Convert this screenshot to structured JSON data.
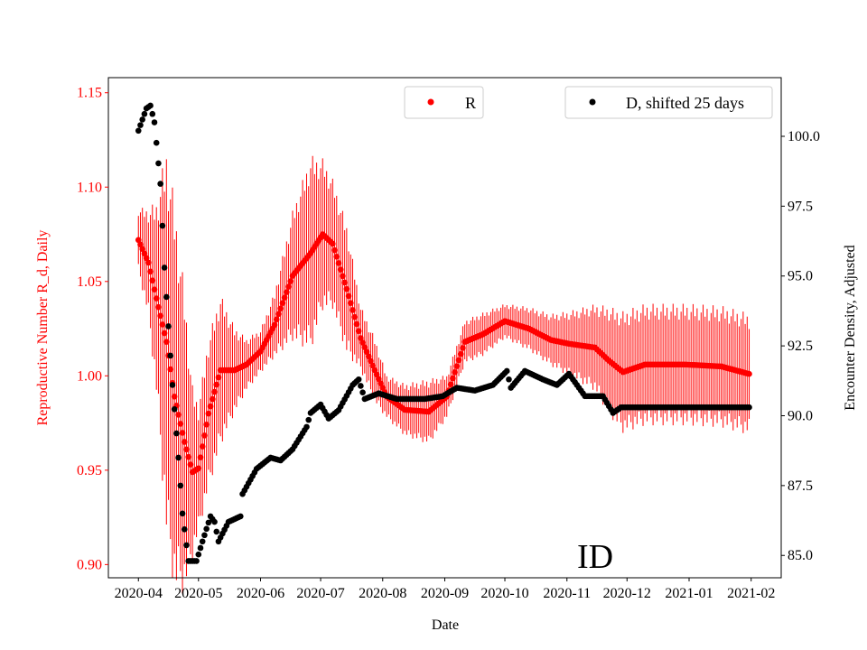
{
  "chart_data": {
    "type": "scatter",
    "xlabel": "Date",
    "ylabel_left": "Reproductive Number R_d, Daily",
    "ylabel_right": "Encounter Density, Adjusted",
    "annotation": "ID",
    "xlim": [
      "2020-03-17",
      "2021-02-16"
    ],
    "ylim_left": [
      0.893,
      1.158
    ],
    "ylim_right": [
      84.2,
      102.1
    ],
    "x_ticks": [
      "2020-04",
      "2020-05",
      "2020-06",
      "2020-07",
      "2020-08",
      "2020-09",
      "2020-10",
      "2020-11",
      "2020-12",
      "2021-01",
      "2021-02"
    ],
    "y_ticks_left": [
      "0.90",
      "0.95",
      "1.00",
      "1.05",
      "1.10",
      "1.15"
    ],
    "y_ticks_right": [
      "85.0",
      "87.5",
      "90.0",
      "92.5",
      "95.0",
      "97.5",
      "100.0"
    ],
    "legend": [
      {
        "label": "R",
        "color": "#ff0000",
        "position": "top-center"
      },
      {
        "label": "D, shifted 25 days",
        "color": "#000000",
        "position": "top-right"
      }
    ],
    "grid": false,
    "series": [
      {
        "name": "R",
        "axis": "left",
        "color": "#ff0000",
        "error_bars": true,
        "points": [
          [
            "2020-04-01",
            1.072,
            0.015
          ],
          [
            "2020-04-06",
            1.06,
            0.025
          ],
          [
            "2020-04-10",
            1.041,
            0.045
          ],
          [
            "2020-04-15",
            1.018,
            0.09
          ],
          [
            "2020-04-19",
            0.989,
            0.09
          ],
          [
            "2020-04-24",
            0.965,
            0.07
          ],
          [
            "2020-04-28",
            0.949,
            0.04
          ],
          [
            "2020-05-01",
            0.951,
            0.03
          ],
          [
            "2020-05-06",
            0.98,
            0.035
          ],
          [
            "2020-05-12",
            1.003,
            0.035
          ],
          [
            "2020-05-19",
            1.003,
            0.02
          ],
          [
            "2020-05-25",
            1.006,
            0.012
          ],
          [
            "2020-06-01",
            1.013,
            0.01
          ],
          [
            "2020-06-08",
            1.027,
            0.015
          ],
          [
            "2020-06-17",
            1.053,
            0.03
          ],
          [
            "2020-06-26",
            1.065,
            0.045
          ],
          [
            "2020-07-02",
            1.075,
            0.035
          ],
          [
            "2020-07-07",
            1.07,
            0.03
          ],
          [
            "2020-07-14",
            1.046,
            0.03
          ],
          [
            "2020-07-21",
            1.02,
            0.015
          ],
          [
            "2020-07-28",
            1.003,
            0.015
          ],
          [
            "2020-08-03",
            0.989,
            0.01
          ],
          [
            "2020-08-12",
            0.982,
            0.012
          ],
          [
            "2020-08-24",
            0.981,
            0.015
          ],
          [
            "2020-09-02",
            0.989,
            0.01
          ],
          [
            "2020-09-11",
            1.018,
            0.01
          ],
          [
            "2020-09-20",
            1.022,
            0.01
          ],
          [
            "2020-10-01",
            1.029,
            0.008
          ],
          [
            "2020-10-13",
            1.025,
            0.01
          ],
          [
            "2020-10-24",
            1.019,
            0.012
          ],
          [
            "2020-11-02",
            1.017,
            0.015
          ],
          [
            "2020-11-15",
            1.015,
            0.02
          ],
          [
            "2020-11-22",
            1.008,
            0.025
          ],
          [
            "2020-11-29",
            1.002,
            0.028
          ],
          [
            "2020-12-10",
            1.006,
            0.028
          ],
          [
            "2020-12-30",
            1.006,
            0.028
          ],
          [
            "2021-01-17",
            1.005,
            0.028
          ],
          [
            "2021-01-31",
            1.001,
            0.028
          ]
        ]
      },
      {
        "name": "D, shifted 25 days",
        "axis": "right",
        "color": "#000000",
        "points": [
          [
            "2020-04-01",
            100.2
          ],
          [
            "2020-04-05",
            101.0
          ],
          [
            "2020-04-07",
            101.1
          ],
          [
            "2020-04-09",
            100.5
          ],
          [
            "2020-04-12",
            98.3
          ],
          [
            "2020-04-14",
            95.3
          ],
          [
            "2020-04-16",
            93.2
          ],
          [
            "2020-04-18",
            91.1
          ],
          [
            "2020-04-21",
            88.5
          ],
          [
            "2020-04-23",
            86.5
          ],
          [
            "2020-04-26",
            84.8
          ],
          [
            "2020-04-30",
            84.8
          ],
          [
            "2020-05-03",
            85.5
          ],
          [
            "2020-05-07",
            86.4
          ],
          [
            "2020-05-09",
            86.2
          ],
          [
            "2020-05-11",
            85.5
          ],
          [
            "2020-05-16",
            86.2
          ],
          [
            "2020-05-22",
            86.4
          ],
          [
            "2020-05-23",
            87.2
          ],
          [
            "2020-05-30",
            88.1
          ],
          [
            "2020-06-06",
            88.5
          ],
          [
            "2020-06-11",
            88.4
          ],
          [
            "2020-06-17",
            88.8
          ],
          [
            "2020-06-24",
            89.6
          ],
          [
            "2020-06-26",
            90.1
          ],
          [
            "2020-07-01",
            90.4
          ],
          [
            "2020-07-05",
            89.9
          ],
          [
            "2020-07-10",
            90.2
          ],
          [
            "2020-07-17",
            91.1
          ],
          [
            "2020-07-20",
            91.3
          ],
          [
            "2020-07-23",
            90.6
          ],
          [
            "2020-07-30",
            90.8
          ],
          [
            "2020-08-08",
            90.6
          ],
          [
            "2020-08-22",
            90.6
          ],
          [
            "2020-08-31",
            90.7
          ],
          [
            "2020-09-07",
            91.0
          ],
          [
            "2020-09-16",
            90.9
          ],
          [
            "2020-09-25",
            91.1
          ],
          [
            "2020-10-02",
            91.6
          ],
          [
            "2020-10-04",
            91.0
          ],
          [
            "2020-10-11",
            91.6
          ],
          [
            "2020-10-20",
            91.3
          ],
          [
            "2020-10-27",
            91.1
          ],
          [
            "2020-11-02",
            91.5
          ],
          [
            "2020-11-10",
            90.7
          ],
          [
            "2020-11-19",
            90.7
          ],
          [
            "2020-11-24",
            90.1
          ],
          [
            "2020-11-28",
            90.3
          ],
          [
            "2021-01-31",
            90.3
          ]
        ]
      }
    ]
  }
}
